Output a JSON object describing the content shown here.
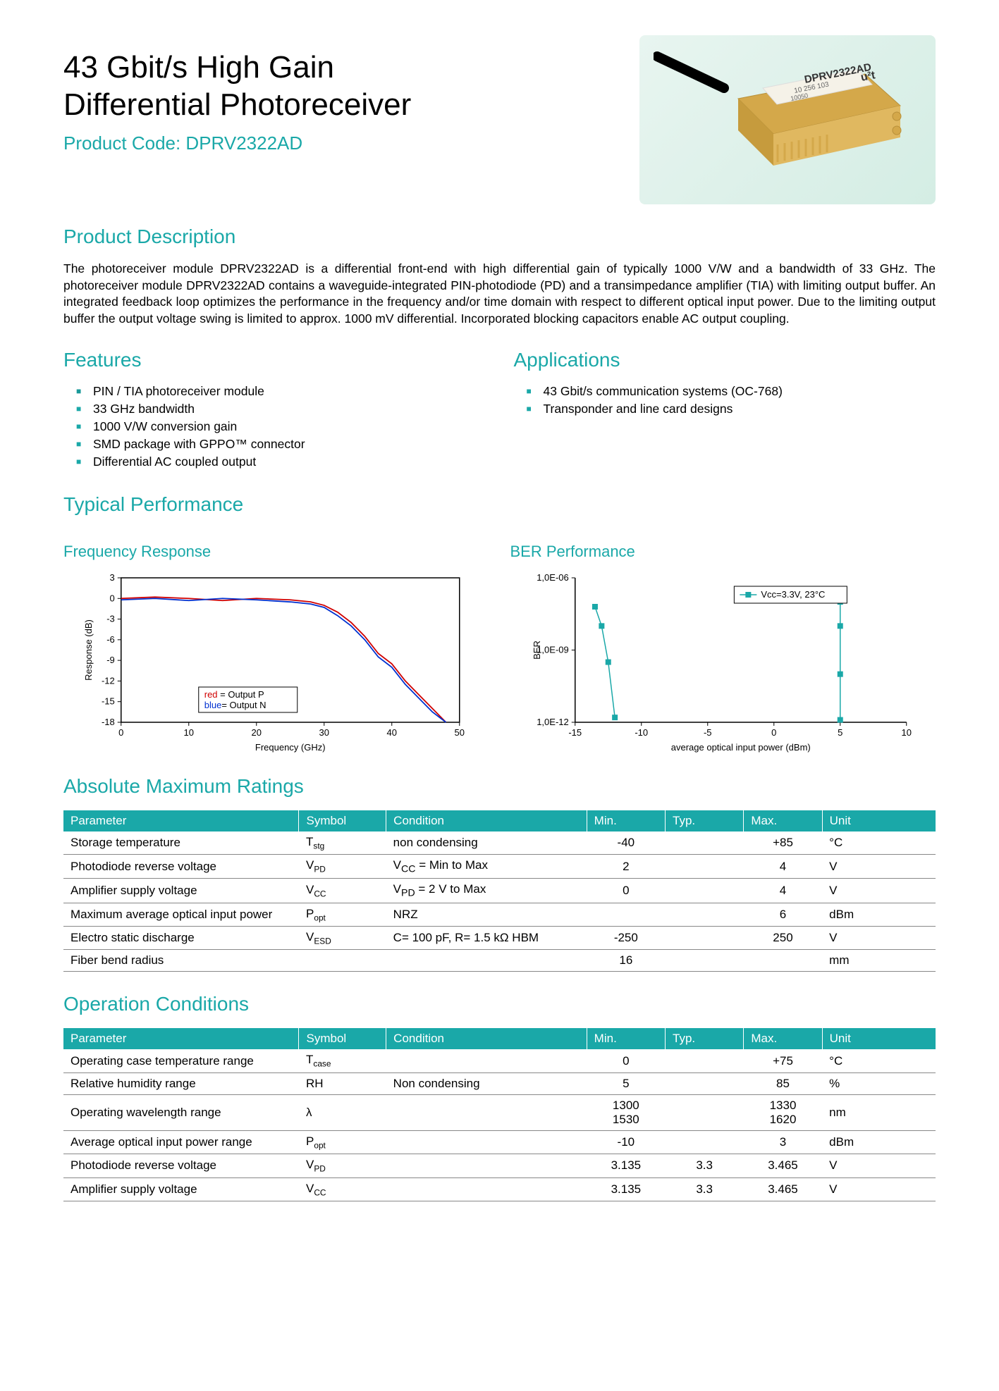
{
  "header": {
    "title_line1": "43 Gbit/s High Gain",
    "title_line2": "Differential Photoreceiver",
    "product_code_label": "Product Code: DPRV2322AD",
    "product_image_label": "DPRV2322AD",
    "product_image_sub1": "10 256 103",
    "product_image_sub2": "10050"
  },
  "sections": {
    "description_heading": "Product Description",
    "description_text": "The photoreceiver module DPRV2322AD is a differential front-end with high differential gain of typically 1000 V/W and a bandwidth of 33 GHz. The photoreceiver module DPRV2322AD contains a waveguide-integrated PIN-photodiode (PD) and a transimpedance amplifier (TIA) with limiting output buffer. An integrated feedback loop optimizes the performance in the frequency and/or time domain with respect to different optical input power. Due to the limiting output buffer the output voltage swing is limited to approx. 1000 mV differential. Incorporated blocking capacitors enable AC output coupling.",
    "features_heading": "Features",
    "features": [
      "PIN / TIA photoreceiver module",
      "33 GHz bandwidth",
      "1000 V/W conversion gain",
      "SMD package with GPPO™ connector",
      "Differential AC coupled output"
    ],
    "applications_heading": "Applications",
    "applications": [
      "43 Gbit/s communication systems  (OC-768)",
      "Transponder and line card designs"
    ],
    "typical_perf_heading": "Typical Performance",
    "freq_response_heading": "Frequency Response",
    "ber_heading": "BER Performance",
    "abs_max_heading": "Absolute Maximum Ratings",
    "op_cond_heading": "Operation Conditions"
  },
  "freq_chart": {
    "type": "line",
    "x_label": "Frequency (GHz)",
    "y_label": "Response (dB)",
    "xlim": [
      0,
      50
    ],
    "ylim": [
      -18,
      3
    ],
    "x_ticks": [
      0,
      10,
      20,
      30,
      40,
      50
    ],
    "y_ticks": [
      3,
      0,
      -3,
      -6,
      -9,
      -12,
      -15,
      -18
    ],
    "legend": [
      "red  = Output P",
      "blue= Output N"
    ],
    "legend_colors": [
      "#d00000",
      "#0030d0"
    ],
    "series": [
      {
        "name": "Output P",
        "color": "#d00000",
        "data": [
          [
            0,
            0
          ],
          [
            5,
            0.2
          ],
          [
            10,
            0
          ],
          [
            15,
            -0.3
          ],
          [
            20,
            0
          ],
          [
            25,
            -0.2
          ],
          [
            28,
            -0.5
          ],
          [
            30,
            -1
          ],
          [
            32,
            -2
          ],
          [
            34,
            -3.5
          ],
          [
            36,
            -5.5
          ],
          [
            38,
            -8
          ],
          [
            40,
            -9.5
          ],
          [
            42,
            -12
          ],
          [
            44,
            -14
          ],
          [
            46,
            -16
          ],
          [
            48,
            -18
          ]
        ]
      },
      {
        "name": "Output N",
        "color": "#0030d0",
        "data": [
          [
            0,
            -0.2
          ],
          [
            5,
            0
          ],
          [
            10,
            -0.3
          ],
          [
            15,
            0
          ],
          [
            20,
            -0.2
          ],
          [
            25,
            -0.5
          ],
          [
            28,
            -0.8
          ],
          [
            30,
            -1.3
          ],
          [
            32,
            -2.5
          ],
          [
            34,
            -4
          ],
          [
            36,
            -6
          ],
          [
            38,
            -8.5
          ],
          [
            40,
            -10
          ],
          [
            42,
            -12.5
          ],
          [
            44,
            -14.5
          ],
          [
            46,
            -16.5
          ],
          [
            48,
            -18
          ]
        ]
      }
    ],
    "axis_color": "#000",
    "grid_color": "#000",
    "label_fontsize": 13
  },
  "ber_chart": {
    "type": "scatter-line",
    "x_label": "average optical input power (dBm)",
    "y_label": "BER",
    "xlim": [
      -15,
      10
    ],
    "ylim_log": [
      -12,
      -6
    ],
    "x_ticks": [
      -15,
      -10,
      -5,
      0,
      5,
      10
    ],
    "y_ticks": [
      "1,0E-06",
      "1,0E-09",
      "1,0E-12"
    ],
    "legend": "Vcc=3.3V, 23°C",
    "series_color": "#1aa8a8",
    "marker": "square",
    "data": [
      [
        -13.5,
        -7.2
      ],
      [
        -13,
        -8
      ],
      [
        -12.5,
        -9.5
      ],
      [
        -12,
        -11.8
      ],
      [
        5,
        -11.9
      ],
      [
        5,
        -10
      ],
      [
        5,
        -8
      ],
      [
        5,
        -7
      ]
    ],
    "axis_color": "#000",
    "label_fontsize": 13
  },
  "abs_max_table": {
    "columns": [
      "Parameter",
      "Symbol",
      "Condition",
      "Min.",
      "Typ.",
      "Max.",
      "Unit"
    ],
    "col_widths": [
      "27%",
      "10%",
      "23%",
      "9%",
      "9%",
      "9%",
      "13%"
    ],
    "rows": [
      {
        "param": "Storage temperature",
        "symbol": "T",
        "sub": "stg",
        "condition": "non condensing",
        "min": "-40",
        "typ": "",
        "max": "+85",
        "unit": "°C"
      },
      {
        "param": "Photodiode reverse voltage",
        "symbol": "V",
        "sub": "PD",
        "condition": "V<sub>CC</sub> = Min to Max",
        "min": "2",
        "typ": "",
        "max": "4",
        "unit": "V"
      },
      {
        "param": "Amplifier supply voltage",
        "symbol": "V",
        "sub": "CC",
        "condition": "V<sub>PD</sub> = 2 V to Max",
        "min": "0",
        "typ": "",
        "max": "4",
        "unit": "V"
      },
      {
        "param": "Maximum average optical input power",
        "symbol": "P",
        "sub": "opt",
        "condition": "NRZ",
        "min": "",
        "typ": "",
        "max": "6",
        "unit": "dBm"
      },
      {
        "param": "Electro static discharge",
        "symbol": "V",
        "sub": "ESD",
        "condition": "C= 100 pF, R= 1.5 kΩ HBM",
        "min": "-250",
        "typ": "",
        "max": "250",
        "unit": "V"
      },
      {
        "param": "Fiber bend radius",
        "symbol": "",
        "sub": "",
        "condition": "",
        "min": "16",
        "typ": "",
        "max": "",
        "unit": "mm"
      }
    ]
  },
  "op_cond_table": {
    "columns": [
      "Parameter",
      "Symbol",
      "Condition",
      "Min.",
      "Typ.",
      "Max.",
      "Unit"
    ],
    "col_widths": [
      "27%",
      "10%",
      "23%",
      "9%",
      "9%",
      "9%",
      "13%"
    ],
    "rows": [
      {
        "param": "Operating case temperature range",
        "symbol": "T",
        "sub": "case",
        "condition": "",
        "min": "0",
        "typ": "",
        "max": "+75",
        "unit": "°C"
      },
      {
        "param": "Relative humidity range",
        "symbol": "RH",
        "sub": "",
        "condition": "Non condensing",
        "min": "5",
        "typ": "",
        "max": "85",
        "unit": "%"
      },
      {
        "param": "Operating wavelength range",
        "symbol": "λ",
        "sub": "",
        "condition": "",
        "min": "1300<br>1530",
        "typ": "",
        "max": "1330<br>1620",
        "unit": "nm"
      },
      {
        "param": "Average optical input power range",
        "symbol": "P",
        "sub": "opt",
        "condition": "",
        "min": "-10",
        "typ": "",
        "max": "3",
        "unit": "dBm"
      },
      {
        "param": "Photodiode reverse voltage",
        "symbol": "V",
        "sub": "PD",
        "condition": "",
        "min": "3.135",
        "typ": "3.3",
        "max": "3.465",
        "unit": "V"
      },
      {
        "param": "Amplifier supply voltage",
        "symbol": "V",
        "sub": "CC",
        "condition": "",
        "min": "3.135",
        "typ": "3.3",
        "max": "3.465",
        "unit": "V"
      }
    ]
  }
}
